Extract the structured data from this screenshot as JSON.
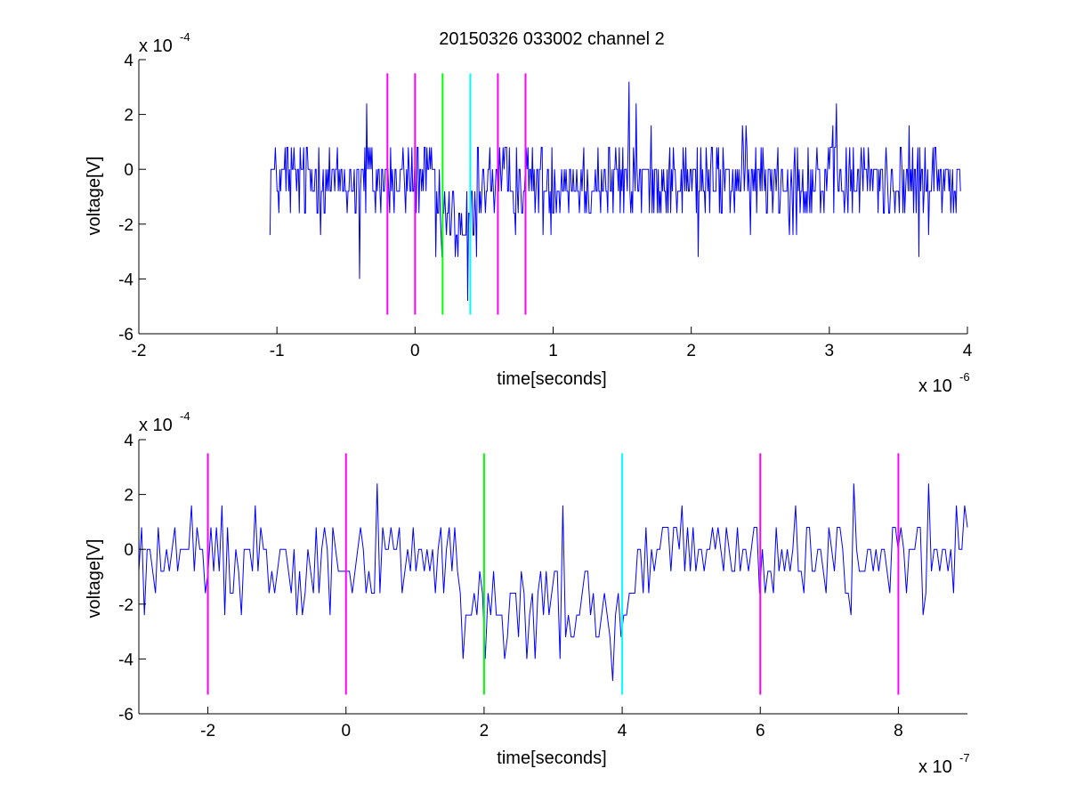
{
  "colors": {
    "signal": "#0000ff",
    "magenta": "#ff00ff",
    "green": "#00ff00",
    "cyan": "#00ffff",
    "axes": "#000000",
    "background": "#ffffff"
  },
  "chart_data": [
    {
      "type": "line",
      "title": "20150326 033002 channel 2",
      "xlabel": "time[seconds]",
      "ylabel": "voltage[V]",
      "x_multiplier": {
        "base": "x 10",
        "exponent": "-6"
      },
      "y_multiplier": {
        "base": "x 10",
        "exponent": "-4"
      },
      "xlim": [
        -2,
        4
      ],
      "ylim": [
        -6,
        4
      ],
      "x_ticks": [
        -2,
        -1,
        0,
        1,
        2,
        3,
        4
      ],
      "y_ticks": [
        4,
        2,
        0,
        -2,
        -4,
        -6
      ],
      "grid": false,
      "signal": {
        "x_start": -1.05,
        "x_end": 3.95,
        "n_points": 780,
        "levels": [
          -3.2,
          -2.4,
          -1.6,
          -0.8,
          0,
          0.8,
          1.6
        ],
        "baseline_center": -0.4,
        "dip": {
          "start": 0.15,
          "end": 0.45,
          "center": -2.0
        },
        "spikes": [
          {
            "x": -0.35,
            "y": 2.4
          },
          {
            "x": -0.4,
            "y": -4.0
          },
          {
            "x": 0.38,
            "y": -4.8
          },
          {
            "x": 1.55,
            "y": 3.2
          },
          {
            "x": 1.6,
            "y": 2.4
          },
          {
            "x": 3.05,
            "y": 2.4
          },
          {
            "x": 2.05,
            "y": -3.2
          },
          {
            "x": 3.65,
            "y": -3.2
          },
          {
            "x": -1.05,
            "y": -2.4
          }
        ]
      },
      "markers": [
        {
          "x": -0.2,
          "color": "magenta",
          "y_range": [
            -5.3,
            3.5
          ]
        },
        {
          "x": 0.0,
          "color": "magenta",
          "y_range": [
            -5.3,
            3.5
          ]
        },
        {
          "x": 0.2,
          "color": "green",
          "y_range": [
            -5.3,
            3.5
          ]
        },
        {
          "x": 0.4,
          "color": "cyan",
          "y_range": [
            -5.3,
            3.5
          ]
        },
        {
          "x": 0.6,
          "color": "magenta",
          "y_range": [
            -5.3,
            3.5
          ]
        },
        {
          "x": 0.8,
          "color": "magenta",
          "y_range": [
            -5.3,
            3.5
          ]
        }
      ]
    },
    {
      "type": "line",
      "xlabel": "time[seconds]",
      "ylabel": "voltage[V]",
      "x_multiplier": {
        "base": "x 10",
        "exponent": "-7"
      },
      "y_multiplier": {
        "base": "x 10",
        "exponent": "-4"
      },
      "xlim": [
        -3,
        9
      ],
      "ylim": [
        -6,
        4
      ],
      "x_ticks": [
        -2,
        0,
        2,
        4,
        6,
        8
      ],
      "y_ticks": [
        4,
        2,
        0,
        -2,
        -4,
        -6
      ],
      "grid": false,
      "signal": {
        "x_start": -3,
        "x_end": 9,
        "n_points": 300,
        "levels": [
          -4.8,
          -4.0,
          -3.2,
          -2.4,
          -1.6,
          -0.8,
          0,
          0.8,
          1.6,
          2.4
        ],
        "baseline_center": -0.3,
        "dip": {
          "start": 1.6,
          "end": 4.2,
          "center": -2.2
        },
        "spikes": [
          {
            "x": -2.9,
            "y": -2.4
          },
          {
            "x": 1.7,
            "y": -4.0
          },
          {
            "x": 2.0,
            "y": -4.0
          },
          {
            "x": 3.1,
            "y": -4.0
          },
          {
            "x": 3.85,
            "y": -4.8
          },
          {
            "x": 3.15,
            "y": 1.6
          },
          {
            "x": 7.3,
            "y": -2.4
          },
          {
            "x": 8.45,
            "y": 2.4
          },
          {
            "x": 8.95,
            "y": 1.6
          }
        ]
      },
      "markers": [
        {
          "x": -2,
          "color": "magenta",
          "y_range": [
            -5.3,
            3.5
          ]
        },
        {
          "x": 0,
          "color": "magenta",
          "y_range": [
            -5.3,
            3.5
          ]
        },
        {
          "x": 2,
          "color": "green",
          "y_range": [
            -5.3,
            3.5
          ]
        },
        {
          "x": 4,
          "color": "cyan",
          "y_range": [
            -5.3,
            3.5
          ]
        },
        {
          "x": 6,
          "color": "magenta",
          "y_range": [
            -5.3,
            3.5
          ]
        },
        {
          "x": 8,
          "color": "magenta",
          "y_range": [
            -5.3,
            3.5
          ]
        }
      ]
    }
  ]
}
